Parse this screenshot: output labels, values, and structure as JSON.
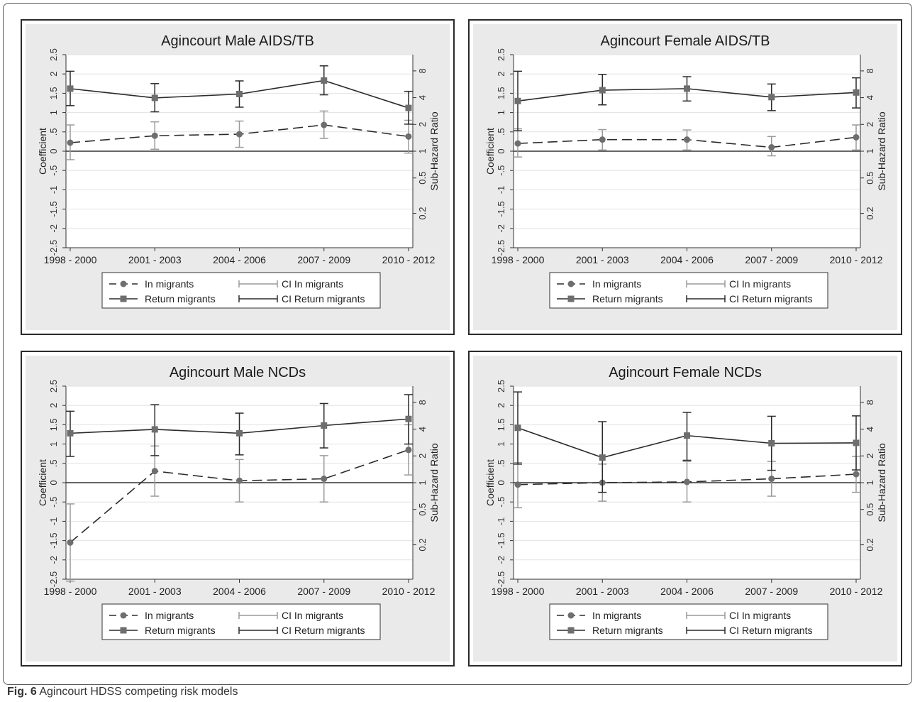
{
  "figure": {
    "label": "Fig. 6",
    "caption": "Agincourt HDSS competing risk models"
  },
  "chart_data": [
    {
      "type": "line",
      "title": "Agincourt Male AIDS/TB",
      "ylabel": "Coefficient",
      "y2label": "Sub-Hazard Ratio",
      "categories": [
        "1998 - 2000",
        "2001 - 2003",
        "2004 - 2006",
        "2007 - 2009",
        "2010 - 2012"
      ],
      "yticks": [
        "-2.5",
        "-2",
        "-1.5",
        "-1",
        "-.5",
        "0",
        ".5",
        "1",
        "1.5",
        "2",
        "2.5"
      ],
      "y2ticks": [
        "0.2",
        "0.5",
        "1",
        "2",
        "4",
        "8"
      ],
      "ylim": [
        -2.5,
        2.5
      ],
      "series": [
        {
          "name": "In migrants",
          "values": [
            0.22,
            0.4,
            0.44,
            0.68,
            0.38
          ],
          "ci_low": [
            -0.22,
            0.05,
            0.1,
            0.33,
            -0.05
          ],
          "ci_high": [
            0.68,
            0.76,
            0.78,
            1.04,
            0.8
          ]
        },
        {
          "name": "Return migrants",
          "values": [
            1.62,
            1.38,
            1.48,
            1.83,
            1.12
          ],
          "ci_low": [
            1.18,
            1.02,
            1.14,
            1.46,
            0.7
          ],
          "ci_high": [
            2.07,
            1.75,
            1.82,
            2.21,
            1.55
          ]
        }
      ],
      "legend": [
        "In migrants",
        "CI In migrants",
        "Return migrants",
        "CI Return migrants"
      ]
    },
    {
      "type": "line",
      "title": "Agincourt Female AIDS/TB",
      "ylabel": "Coefficient",
      "y2label": "Sub-Hazard Ratio",
      "categories": [
        "1998 - 2000",
        "2001 - 2003",
        "2004 - 2006",
        "2007 - 2009",
        "2010 - 2012"
      ],
      "yticks": [
        "-2.5",
        "-2",
        "-1.5",
        "-1",
        "-.5",
        "0",
        ".5",
        "1",
        "1.5",
        "2",
        "2.5"
      ],
      "y2ticks": [
        "0.2",
        "0.5",
        "1",
        "2",
        "4",
        "8"
      ],
      "ylim": [
        -2.5,
        2.5
      ],
      "series": [
        {
          "name": "In migrants",
          "values": [
            0.2,
            0.3,
            0.3,
            0.1,
            0.36
          ],
          "ci_low": [
            -0.15,
            0.03,
            0.03,
            -0.12,
            0.03
          ],
          "ci_high": [
            0.58,
            0.56,
            0.55,
            0.38,
            0.68
          ]
        },
        {
          "name": "Return migrants",
          "values": [
            1.3,
            1.58,
            1.62,
            1.4,
            1.52
          ],
          "ci_low": [
            0.53,
            1.2,
            1.3,
            1.05,
            1.12
          ],
          "ci_high": [
            2.07,
            1.99,
            1.93,
            1.74,
            1.9
          ]
        }
      ],
      "legend": [
        "In migrants",
        "CI In migrants",
        "Return migrants",
        "CI Return migrants"
      ]
    },
    {
      "type": "line",
      "title": "Agincourt Male NCDs",
      "ylabel": "Coefficient",
      "y2label": "Sub-Hazard Ratio",
      "categories": [
        "1998 - 2000",
        "2001 - 2003",
        "2004 - 2006",
        "2007 - 2009",
        "2010 - 2012"
      ],
      "yticks": [
        "-2.5",
        "-2",
        "-1.5",
        "-1",
        "-.5",
        "0",
        ".5",
        "1",
        "1.5",
        "2",
        "2.5"
      ],
      "y2ticks": [
        "0.2",
        "0.5",
        "1",
        "2",
        "4",
        "8"
      ],
      "ylim": [
        -2.5,
        2.5
      ],
      "series": [
        {
          "name": "In migrants",
          "values": [
            -1.55,
            0.3,
            0.05,
            0.1,
            0.85
          ],
          "ci_low": [
            -2.55,
            -0.35,
            -0.5,
            -0.5,
            0.2
          ],
          "ci_high": [
            -0.55,
            0.95,
            0.6,
            0.7,
            1.5
          ]
        },
        {
          "name": "Return migrants",
          "values": [
            1.28,
            1.38,
            1.28,
            1.48,
            1.65
          ],
          "ci_low": [
            0.68,
            0.7,
            0.72,
            0.9,
            1.0
          ],
          "ci_high": [
            1.85,
            2.02,
            1.8,
            2.05,
            2.28
          ]
        }
      ],
      "legend": [
        "In migrants",
        "CI In migrants",
        "Return migrants",
        "CI Return migrants"
      ]
    },
    {
      "type": "line",
      "title": "Agincourt Female NCDs",
      "ylabel": "Coefficient",
      "y2label": "Sub-Hazard Ratio",
      "categories": [
        "1998 - 2000",
        "2001 - 2003",
        "2004 - 2006",
        "2007 - 2009",
        "2010 - 2012"
      ],
      "yticks": [
        "-2.5",
        "-2",
        "-1.5",
        "-1",
        "-.5",
        "0",
        ".5",
        "1",
        "1.5",
        "2",
        "2.5"
      ],
      "y2ticks": [
        "0.2",
        "0.5",
        "1",
        "2",
        "4",
        "8"
      ],
      "ylim": [
        -2.5,
        2.5
      ],
      "series": [
        {
          "name": "In migrants",
          "values": [
            -0.05,
            0.0,
            0.02,
            0.1,
            0.22
          ],
          "ci_low": [
            -0.65,
            -0.48,
            -0.5,
            -0.35,
            -0.25
          ],
          "ci_high": [
            0.52,
            0.48,
            0.55,
            0.55,
            0.68
          ]
        },
        {
          "name": "Return migrants",
          "values": [
            1.42,
            0.65,
            1.22,
            1.02,
            1.03
          ],
          "ci_low": [
            0.48,
            -0.25,
            0.58,
            0.32,
            0.33
          ],
          "ci_high": [
            2.35,
            1.58,
            1.82,
            1.72,
            1.73
          ]
        }
      ],
      "legend": [
        "In migrants",
        "CI In migrants",
        "Return migrants",
        "CI Return migrants"
      ]
    }
  ]
}
